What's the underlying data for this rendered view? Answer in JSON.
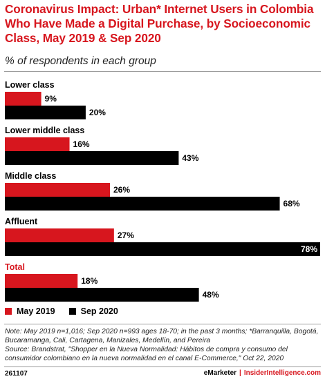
{
  "header": {
    "title": "Coronavirus Impact: Urban* Internet Users in Colombia Who Have Made a Digital Purchase, by Socioeconomic Class, May 2019 & Sep 2020",
    "subtitle": "% of respondents in each group"
  },
  "colors": {
    "may2019": "#d7161e",
    "sep2020": "#000000",
    "accent": "#d7161e"
  },
  "chart_data": {
    "type": "bar",
    "orientation": "horizontal",
    "title": "Coronavirus Impact: Urban* Internet Users in Colombia Who Have Made a Digital Purchase, by Socioeconomic Class, May 2019 & Sep 2020",
    "subtitle": "% of respondents in each group",
    "categories": [
      "Lower class",
      "Lower middle class",
      "Middle class",
      "Affluent",
      "Total"
    ],
    "series": [
      {
        "name": "May 2019",
        "values": [
          9,
          16,
          26,
          27,
          18
        ],
        "labels": [
          "9%",
          "16%",
          "26%",
          "27%",
          "18%"
        ]
      },
      {
        "name": "Sep 2020",
        "values": [
          20,
          43,
          68,
          78,
          48
        ],
        "labels": [
          "20%",
          "43%",
          "68%",
          "78%",
          "48%"
        ]
      }
    ],
    "xlim": [
      0,
      78
    ],
    "legend_position": "bottom-left",
    "grid": false
  },
  "legend": {
    "may": "May 2019",
    "sep": "Sep 2020"
  },
  "note": "Note: May 2019 n=1,016; Sep 2020 n=993 ages 18-70; in the past 3 months; *Barranquilla, Bogotá, Bucaramanga, Cali, Cartagena, Manizales, Medellín, and Pereira",
  "source": "Source: Brandstrat, \"Shopper en la Nueva Normalidad: Hábitos de compra y consumo del consumidor colombiano en la nueva normalidad en el canal E-Commerce,\" Oct 22, 2020",
  "footer": {
    "chart_id": "261107",
    "brand": "eMarketer",
    "separator": "|",
    "site": "InsiderIntelligence.com"
  }
}
